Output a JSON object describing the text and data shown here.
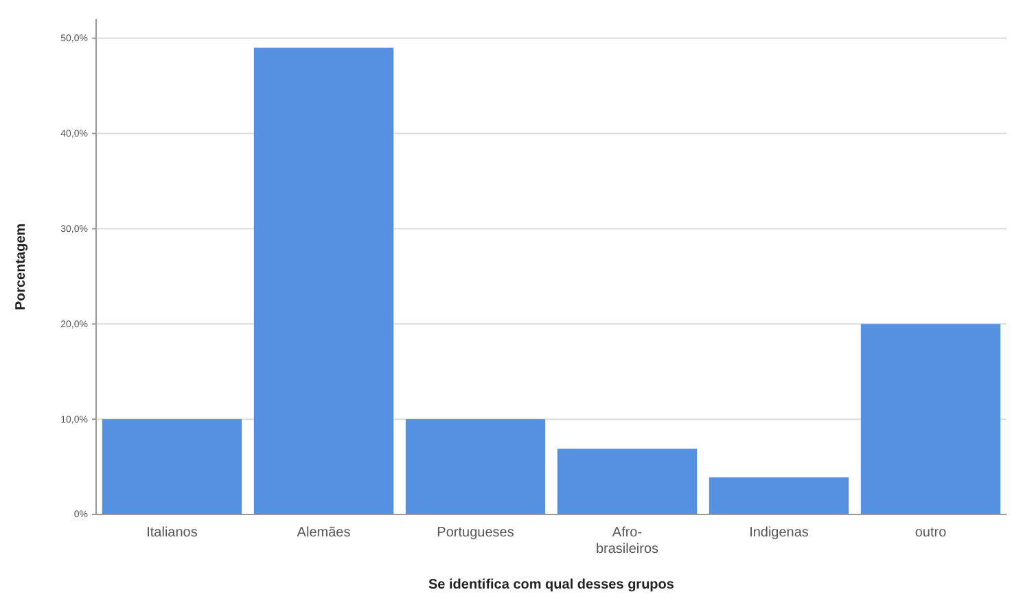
{
  "chart_data": {
    "type": "bar",
    "xlabel": "Se identifica com qual desses grupos",
    "ylabel": "Porcentagem",
    "categories": [
      "Italianos",
      "Alemães",
      "Portugueses",
      "Afro-\nbrasileiros",
      "Indigenas",
      "outro"
    ],
    "values": [
      10.0,
      49.0,
      10.0,
      6.9,
      3.9,
      20.0
    ],
    "color": "#5591e0",
    "ylim": [
      0,
      52
    ],
    "yticks": [
      {
        "value": 0,
        "label": "0%"
      },
      {
        "value": 10,
        "label": "10,0%"
      },
      {
        "value": 20,
        "label": "20,0%"
      },
      {
        "value": 30,
        "label": "30,0%"
      },
      {
        "value": 40,
        "label": "40,0%"
      },
      {
        "value": 50,
        "label": "50,0%"
      }
    ],
    "grid": "y"
  }
}
